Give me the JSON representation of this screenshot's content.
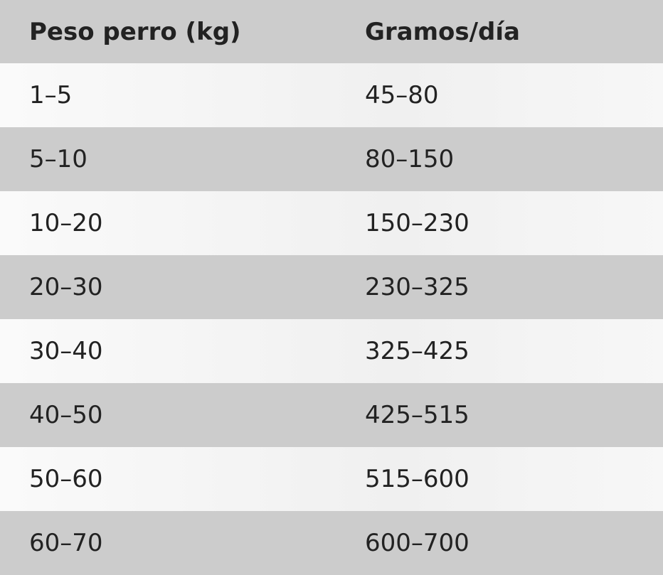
{
  "table": {
    "header": [
      "Peso perro (kg)",
      "Gramos/día"
    ],
    "rows": [
      [
        "1–5",
        "45–80"
      ],
      [
        "5–10",
        "80–150"
      ],
      [
        "10–20",
        "150–230"
      ],
      [
        "20–30",
        "230–325"
      ],
      [
        "30–40",
        "325–425"
      ],
      [
        "40–50",
        "425–515"
      ],
      [
        "50–60",
        "515–600"
      ],
      [
        "60–70",
        "600–700"
      ]
    ]
  }
}
